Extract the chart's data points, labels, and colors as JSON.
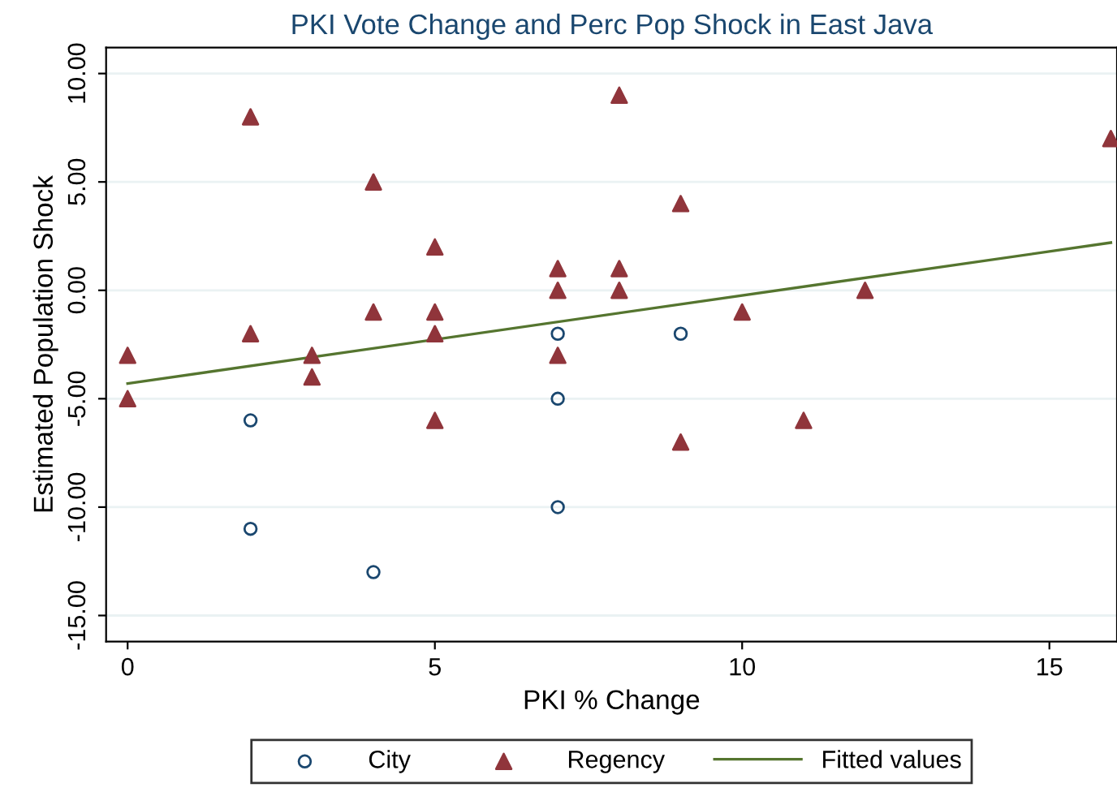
{
  "chart_data": {
    "type": "scatter",
    "title": "PKI Vote Change and Perc Pop Shock in East Java",
    "xlabel": "PKI % Change",
    "ylabel": "Estimated Population Shock",
    "xlim": [
      -0.35,
      16.1
    ],
    "xticks": [
      0,
      5,
      10,
      15
    ],
    "ylim": [
      -16.2,
      11.2
    ],
    "yticks": [
      {
        "value": -15,
        "label": "-15.00"
      },
      {
        "value": -10,
        "label": "-10.00"
      },
      {
        "value": -5,
        "label": "-5.00"
      },
      {
        "value": 0,
        "label": "0.00"
      },
      {
        "value": 5,
        "label": "5.00"
      },
      {
        "value": 10,
        "label": "10.00"
      }
    ],
    "grid": "y",
    "legend": "bottom",
    "series": [
      {
        "name": "City",
        "marker": "circle",
        "color": "#1a476f",
        "x": [
          2,
          2,
          4,
          7,
          7,
          7,
          9
        ],
        "values": [
          -6,
          -11,
          -13,
          -2,
          -5,
          -10,
          -2
        ]
      },
      {
        "name": "Regency",
        "marker": "triangle",
        "color": "#90353b",
        "x": [
          0,
          0,
          2,
          2,
          3,
          3,
          4,
          4,
          5,
          5,
          5,
          5,
          7,
          7,
          7,
          8,
          8,
          8,
          9,
          9,
          10,
          11,
          12,
          16
        ],
        "values": [
          -3,
          -5,
          8,
          -2,
          -3,
          -4,
          5,
          -1,
          2,
          -1,
          -2,
          -6,
          1,
          0,
          -3,
          9,
          1,
          0,
          4,
          -7,
          -1,
          -6,
          0,
          7
        ]
      },
      {
        "name": "Fitted values",
        "type": "line",
        "marker": "none",
        "color": "#55752f",
        "x": [
          0,
          16
        ],
        "values": [
          -4.3,
          2.2
        ]
      }
    ]
  }
}
